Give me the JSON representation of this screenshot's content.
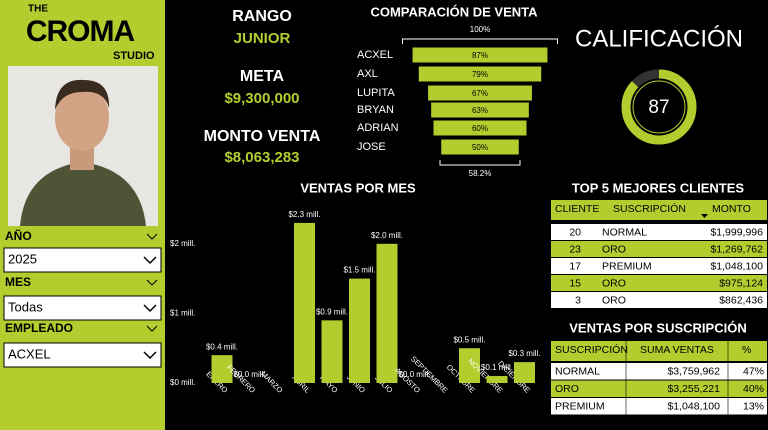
{
  "logo": {
    "line1": "THE",
    "line2": "CROMA",
    "line3": "STUDIO"
  },
  "slicers": [
    {
      "label": "AÑO",
      "value": "2025"
    },
    {
      "label": "MES",
      "value": "Todas"
    },
    {
      "label": "EMPLEADO",
      "value": "ACXEL"
    }
  ],
  "kpis": {
    "rango_label": "RANGO",
    "rango": "JUNIOR",
    "meta_label": "META",
    "meta": "$9,300,000",
    "monto_label": "MONTO VENTA",
    "monto": "$8,063,283"
  },
  "score": {
    "title": "CALIFICACIÓN",
    "value": 87,
    "lim": [
      0,
      100
    ]
  },
  "chart_data": [
    {
      "type": "funnel",
      "title": "COMPARACIÓN DE VENTA",
      "top_label": "100%",
      "bottom_label": "58.2%",
      "categories": [
        "ACXEL",
        "AXL",
        "LUPITA",
        "BRYAN",
        "ADRIAN",
        "JOSE"
      ],
      "values": [
        87,
        79,
        67,
        63,
        60,
        50
      ],
      "value_labels": [
        "87%",
        "79%",
        "67%",
        "63%",
        "60%",
        "50%"
      ],
      "xlim": [
        0,
        100
      ],
      "color": "#b5cc2e"
    },
    {
      "type": "bar",
      "title": "VENTAS POR MES",
      "categories": [
        "ENERO",
        "FEBRERO",
        "MARZO",
        "ABRIL",
        "MAYO",
        "JUNIO",
        "JULIO",
        "AGOSTO",
        "SEPTIEMBRE",
        "OCTUBRE",
        "NOVIEMBRE",
        "DICIEMBRE"
      ],
      "values": [
        0.4,
        0.0,
        null,
        2.3,
        0.9,
        1.5,
        2.0,
        0.0,
        null,
        0.5,
        0.1,
        0.3
      ],
      "value_labels": [
        "$0.4 mill.",
        "$0.0 mill.",
        null,
        "$2.3 mill.",
        "$0.9 mill.",
        "$1.5 mill.",
        "$2.0 mill.",
        "$0.0 mill.",
        null,
        "$0.5 mill.",
        "$0.1 mill.",
        "$0.3 mill."
      ],
      "ylim": [
        0,
        2.5
      ],
      "yticks": [
        {
          "value": 0,
          "label": "$0 mill."
        },
        {
          "value": 1,
          "label": "$1 mill."
        },
        {
          "value": 2,
          "label": "$2 mill."
        }
      ],
      "color": "#b5cc2e"
    }
  ],
  "top_clients": {
    "title": "TOP 5 MEJORES CLIENTES",
    "headers": [
      "CLIENTE",
      "SUSCRIPCIÓN",
      "MONTO"
    ],
    "rows": [
      [
        "20",
        "NORMAL",
        "$1,999,996"
      ],
      [
        "23",
        "ORO",
        "$1,269,762"
      ],
      [
        "17",
        "PREMIUM",
        "$1,048,100"
      ],
      [
        "15",
        "ORO",
        "$975,124"
      ],
      [
        "3",
        "ORO",
        "$862,436"
      ]
    ]
  },
  "by_subscription": {
    "title": "VENTAS POR SUSCRIPCIÓN",
    "headers": [
      "SUSCRIPCIÓN",
      "SUMA VENTAS",
      "%"
    ],
    "rows": [
      [
        "NORMAL",
        "$3,759,962",
        "47%"
      ],
      [
        "ORO",
        "$3,255,221",
        "40%"
      ],
      [
        "PREMIUM",
        "$1,048,100",
        "13%"
      ]
    ]
  }
}
